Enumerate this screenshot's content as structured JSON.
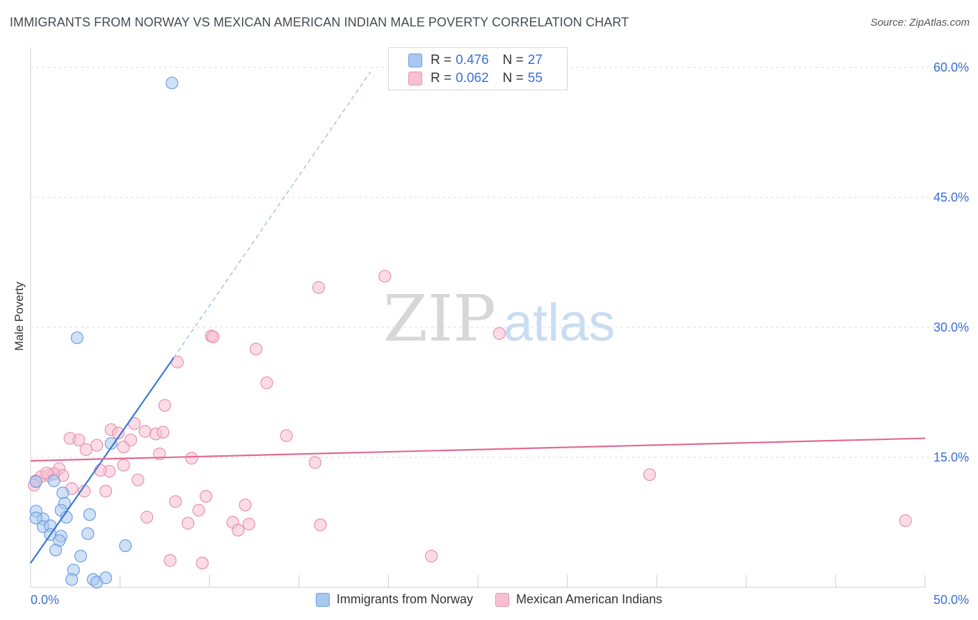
{
  "title": "IMMIGRANTS FROM NORWAY VS MEXICAN AMERICAN INDIAN MALE POVERTY CORRELATION CHART",
  "source": "Source: ZipAtlas.com",
  "watermark": {
    "zip": "ZIP",
    "atlas": "atlas"
  },
  "legend_stats": [
    {
      "r_label": "R =",
      "r_value": "0.476",
      "n_label": "N =",
      "n_value": "27",
      "color": "#a8c8f0",
      "border": "#6f9de0"
    },
    {
      "r_label": "R =",
      "r_value": "0.062",
      "n_label": "N =",
      "n_value": "55",
      "color": "#f8c0d2",
      "border": "#e890b0"
    }
  ],
  "chart_data": {
    "type": "scatter",
    "title": "IMMIGRANTS FROM NORWAY VS MEXICAN AMERICAN INDIAN MALE POVERTY CORRELATION CHART",
    "xlabel": "",
    "ylabel": "Male Poverty",
    "xlim": [
      0,
      50
    ],
    "ylim": [
      0,
      60
    ],
    "x_tick_labels": {
      "left": "0.0%",
      "right": "50.0%"
    },
    "y_ticks": [
      15,
      30,
      45,
      60
    ],
    "y_tick_labels": [
      "15.0%",
      "30.0%",
      "45.0%",
      "60.0%"
    ],
    "grid": true,
    "legend": "bottom-center",
    "series": [
      {
        "name": "Immigrants from Norway",
        "color": "#a8c8f0",
        "stroke": "#6f9de0",
        "line_color": "#3a78d4",
        "trend": {
          "x0": 0.0,
          "y0": 2.8,
          "x1": 8.0,
          "y1": 26.5,
          "dash_to_x": 19.0,
          "dash_to_y": 59.5
        },
        "points": [
          [
            7.9,
            58.2
          ],
          [
            2.6,
            28.8
          ],
          [
            0.3,
            12.2
          ],
          [
            1.3,
            12.3
          ],
          [
            1.8,
            10.9
          ],
          [
            4.5,
            16.6
          ],
          [
            1.9,
            9.7
          ],
          [
            0.3,
            8.8
          ],
          [
            0.7,
            7.9
          ],
          [
            0.3,
            8.0
          ],
          [
            1.7,
            8.9
          ],
          [
            2.0,
            8.1
          ],
          [
            3.3,
            8.4
          ],
          [
            0.7,
            7.0
          ],
          [
            1.1,
            7.1
          ],
          [
            3.2,
            6.2
          ],
          [
            1.1,
            6.1
          ],
          [
            1.7,
            5.9
          ],
          [
            1.6,
            5.4
          ],
          [
            1.4,
            4.3
          ],
          [
            5.3,
            4.8
          ],
          [
            2.8,
            3.6
          ],
          [
            2.4,
            2.0
          ],
          [
            2.3,
            0.9
          ],
          [
            3.5,
            0.9
          ],
          [
            3.7,
            0.6
          ],
          [
            4.2,
            1.1
          ]
        ]
      },
      {
        "name": "Mexican American Indians",
        "color": "#f8c0d2",
        "stroke": "#e890b0",
        "line_color": "#e06a92",
        "trend": {
          "x0": 0.0,
          "y0": 14.6,
          "x1": 50.0,
          "y1": 17.2
        },
        "points": [
          [
            0.3,
            12.3
          ],
          [
            0.6,
            12.8
          ],
          [
            1.0,
            12.9
          ],
          [
            1.6,
            13.7
          ],
          [
            1.8,
            12.9
          ],
          [
            1.3,
            13.1
          ],
          [
            2.2,
            17.2
          ],
          [
            2.7,
            17.0
          ],
          [
            3.1,
            15.9
          ],
          [
            3.7,
            16.4
          ],
          [
            4.5,
            18.2
          ],
          [
            4.9,
            17.8
          ],
          [
            5.2,
            16.2
          ],
          [
            5.6,
            17.0
          ],
          [
            5.8,
            18.9
          ],
          [
            6.4,
            18.0
          ],
          [
            7.0,
            17.7
          ],
          [
            7.4,
            17.9
          ],
          [
            7.5,
            21.0
          ],
          [
            8.2,
            26.0
          ],
          [
            7.2,
            15.4
          ],
          [
            9.0,
            14.9
          ],
          [
            5.2,
            14.1
          ],
          [
            4.4,
            13.4
          ],
          [
            3.9,
            13.5
          ],
          [
            2.3,
            11.4
          ],
          [
            3.0,
            11.1
          ],
          [
            4.2,
            11.1
          ],
          [
            6.0,
            12.4
          ],
          [
            6.5,
            8.1
          ],
          [
            8.1,
            9.9
          ],
          [
            8.8,
            7.4
          ],
          [
            9.4,
            8.9
          ],
          [
            9.8,
            10.5
          ],
          [
            10.1,
            29.0
          ],
          [
            10.2,
            28.9
          ],
          [
            11.3,
            7.5
          ],
          [
            11.6,
            6.6
          ],
          [
            12.0,
            9.5
          ],
          [
            12.2,
            7.3
          ],
          [
            12.6,
            27.5
          ],
          [
            13.2,
            23.6
          ],
          [
            14.3,
            17.5
          ],
          [
            15.9,
            14.4
          ],
          [
            16.1,
            34.6
          ],
          [
            16.2,
            7.2
          ],
          [
            19.8,
            35.9
          ],
          [
            22.4,
            3.6
          ],
          [
            26.2,
            29.3
          ],
          [
            34.6,
            13.0
          ],
          [
            48.9,
            7.7
          ],
          [
            7.8,
            3.1
          ],
          [
            9.6,
            2.8
          ],
          [
            0.2,
            11.8
          ],
          [
            0.9,
            13.2
          ]
        ]
      }
    ]
  }
}
